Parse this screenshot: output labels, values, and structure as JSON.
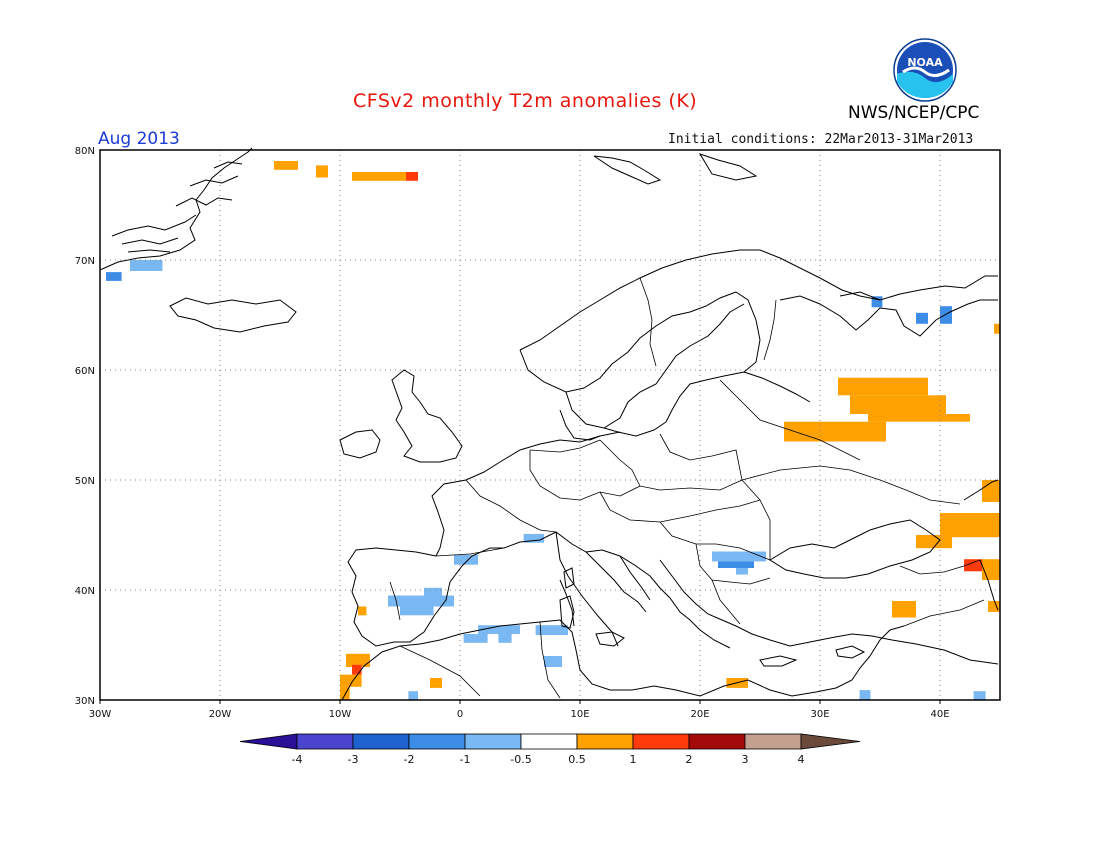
{
  "title": "CFSv2 monthly T2m anomalies (K)",
  "month": "Aug 2013",
  "initial_conditions": "Initial conditions: 22Mar2013-31Mar2013",
  "organization": "NWS/NCEP/CPC",
  "logo_text": "NOAA",
  "map": {
    "lon_range": [
      -30,
      45
    ],
    "lat_range": [
      30,
      80
    ],
    "lon_ticks": [
      {
        "value": -30,
        "label": "30W"
      },
      {
        "value": -20,
        "label": "20W"
      },
      {
        "value": -10,
        "label": "10W"
      },
      {
        "value": 0,
        "label": "0"
      },
      {
        "value": 10,
        "label": "10E"
      },
      {
        "value": 20,
        "label": "20E"
      },
      {
        "value": 30,
        "label": "30E"
      },
      {
        "value": 40,
        "label": "40E"
      }
    ],
    "lat_ticks": [
      {
        "value": 30,
        "label": "30N"
      },
      {
        "value": 40,
        "label": "40N"
      },
      {
        "value": 50,
        "label": "50N"
      },
      {
        "value": 60,
        "label": "60N"
      },
      {
        "value": 70,
        "label": "70N"
      },
      {
        "value": 80,
        "label": "80N"
      }
    ],
    "grid": "dotted"
  },
  "colorbar": {
    "colors": [
      "#2a0f97",
      "#4a44d0",
      "#1e62cf",
      "#3d8de6",
      "#79b8f2",
      "#ffffff",
      "#ffa100",
      "#ff3b0c",
      "#a50a0a",
      "#c4a08f",
      "#6b4a3c"
    ],
    "tick_labels": [
      "-4",
      "-3",
      "-2",
      "-1",
      "-0.5",
      "0.5",
      "1",
      "2",
      "3",
      "4"
    ]
  },
  "anomaly_cells": [
    {
      "lon_range": [
        -29.5,
        -28.2
      ],
      "lat_range": [
        68.1,
        68.9
      ],
      "level": -2
    },
    {
      "lon_range": [
        -27.5,
        -24.8
      ],
      "lat_range": [
        69.0,
        70.0
      ],
      "level": -1
    },
    {
      "lon_range": [
        -15.5,
        -13.5
      ],
      "lat_range": [
        78.2,
        79.0
      ],
      "level": 0.5
    },
    {
      "lon_range": [
        -12.0,
        -11.0
      ],
      "lat_range": [
        77.5,
        78.6
      ],
      "level": 0.5
    },
    {
      "lon_range": [
        -9.0,
        -4.5
      ],
      "lat_range": [
        77.2,
        78.0
      ],
      "level": 0.5
    },
    {
      "lon_range": [
        -4.5,
        -3.5
      ],
      "lat_range": [
        77.2,
        78.0
      ],
      "level": 1
    },
    {
      "lon_range": [
        31.5,
        39.0
      ],
      "lat_range": [
        57.7,
        59.3
      ],
      "level": 0.5
    },
    {
      "lon_range": [
        32.5,
        40.5
      ],
      "lat_range": [
        56.0,
        57.7
      ],
      "level": 0.5
    },
    {
      "lon_range": [
        34.0,
        42.5
      ],
      "lat_range": [
        55.3,
        56.0
      ],
      "level": 0.5
    },
    {
      "lon_range": [
        27.0,
        35.5
      ],
      "lat_range": [
        53.5,
        55.3
      ],
      "level": 0.5
    },
    {
      "lon_range": [
        34.3,
        35.2
      ],
      "lat_range": [
        65.7,
        66.7
      ],
      "level": -2
    },
    {
      "lon_range": [
        38.0,
        39.0
      ],
      "lat_range": [
        64.2,
        65.2
      ],
      "level": -2
    },
    {
      "lon_range": [
        40.0,
        41.0
      ],
      "lat_range": [
        64.2,
        65.8
      ],
      "level": -2
    },
    {
      "lon_range": [
        44.5,
        45.0
      ],
      "lat_range": [
        63.3,
        64.2
      ],
      "level": 0.5
    },
    {
      "lon_range": [
        43.5,
        45.0
      ],
      "lat_range": [
        48.0,
        50.0
      ],
      "level": 0.5
    },
    {
      "lon_range": [
        40.0,
        45.0
      ],
      "lat_range": [
        44.8,
        47.0
      ],
      "level": 0.5
    },
    {
      "lon_range": [
        38.0,
        41.0
      ],
      "lat_range": [
        43.8,
        45.0
      ],
      "level": 0.5
    },
    {
      "lon_range": [
        42.0,
        43.5
      ],
      "lat_range": [
        41.7,
        42.8
      ],
      "level": 1
    },
    {
      "lon_range": [
        43.5,
        45.0
      ],
      "lat_range": [
        40.9,
        42.8
      ],
      "level": 0.5
    },
    {
      "lon_range": [
        36.0,
        38.0
      ],
      "lat_range": [
        37.5,
        39.0
      ],
      "level": 0.5
    },
    {
      "lon_range": [
        44.0,
        45.0
      ],
      "lat_range": [
        38.0,
        39.0
      ],
      "level": 0.5
    },
    {
      "lon_range": [
        -0.5,
        1.5
      ],
      "lat_range": [
        42.3,
        43.2
      ],
      "level": -1
    },
    {
      "lon_range": [
        5.3,
        7.0
      ],
      "lat_range": [
        44.3,
        45.1
      ],
      "level": -1
    },
    {
      "lon_range": [
        -6.0,
        -0.5
      ],
      "lat_range": [
        38.5,
        39.5
      ],
      "level": -1
    },
    {
      "lon_range": [
        -3.0,
        -1.5
      ],
      "lat_range": [
        39.5,
        40.2
      ],
      "level": -1
    },
    {
      "lon_range": [
        -5.0,
        -2.2
      ],
      "lat_range": [
        37.7,
        38.5
      ],
      "level": -1
    },
    {
      "lon_range": [
        -8.5,
        -7.8
      ],
      "lat_range": [
        37.7,
        38.5
      ],
      "level": 0.5
    },
    {
      "lon_range": [
        1.5,
        5.0
      ],
      "lat_range": [
        36.0,
        36.8
      ],
      "level": -1
    },
    {
      "lon_range": [
        0.3,
        2.3
      ],
      "lat_range": [
        35.2,
        36.0
      ],
      "level": -1
    },
    {
      "lon_range": [
        3.2,
        4.3
      ],
      "lat_range": [
        35.2,
        36.0
      ],
      "level": -1
    },
    {
      "lon_range": [
        6.3,
        9.0
      ],
      "lat_range": [
        35.9,
        36.8
      ],
      "level": -1
    },
    {
      "lon_range": [
        7.0,
        8.5
      ],
      "lat_range": [
        33.0,
        34.0
      ],
      "level": -1
    },
    {
      "lon_range": [
        21.0,
        25.5
      ],
      "lat_range": [
        42.6,
        43.5
      ],
      "level": -1
    },
    {
      "lon_range": [
        21.5,
        24.5
      ],
      "lat_range": [
        42.0,
        42.6
      ],
      "level": -2
    },
    {
      "lon_range": [
        23.0,
        24.0
      ],
      "lat_range": [
        41.4,
        42.0
      ],
      "level": -1
    },
    {
      "lon_range": [
        -9.5,
        -7.5
      ],
      "lat_range": [
        33.0,
        34.2
      ],
      "level": 0.5
    },
    {
      "lon_range": [
        -9.0,
        -8.2
      ],
      "lat_range": [
        32.3,
        33.2
      ],
      "level": 1
    },
    {
      "lon_range": [
        -10.0,
        -8.2
      ],
      "lat_range": [
        31.2,
        32.3
      ],
      "level": 0.5
    },
    {
      "lon_range": [
        -10.0,
        -9.2
      ],
      "lat_range": [
        30.0,
        31.2
      ],
      "level": 0.5
    },
    {
      "lon_range": [
        -2.5,
        -1.5
      ],
      "lat_range": [
        31.1,
        32.0
      ],
      "level": 0.5
    },
    {
      "lon_range": [
        -4.3,
        -3.5
      ],
      "lat_range": [
        30.0,
        30.8
      ],
      "level": -1
    },
    {
      "lon_range": [
        22.2,
        24.0
      ],
      "lat_range": [
        31.1,
        32.0
      ],
      "level": 0.5
    },
    {
      "lon_range": [
        33.3,
        34.2
      ],
      "lat_range": [
        30.0,
        30.9
      ],
      "level": -1
    },
    {
      "lon_range": [
        42.8,
        43.8
      ],
      "lat_range": [
        30.0,
        30.8
      ],
      "level": -1
    }
  ]
}
